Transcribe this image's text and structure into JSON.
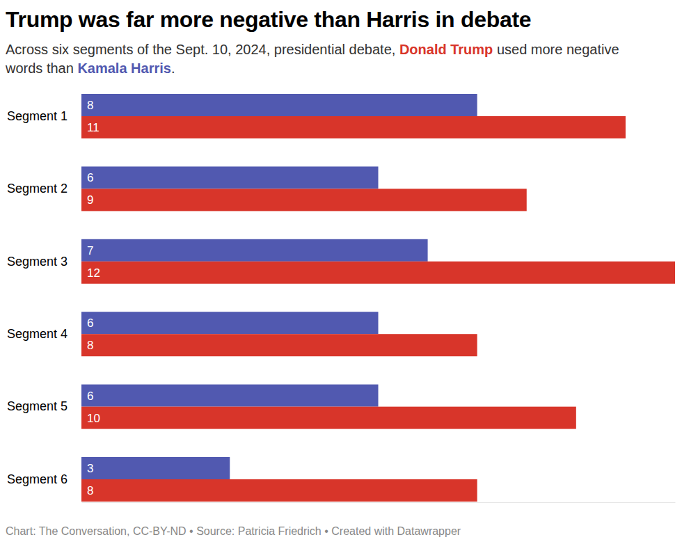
{
  "chart_data": {
    "type": "bar",
    "orientation": "horizontal",
    "title": "Trump was far more negative than Harris in debate",
    "subtitle": "Across six segments of the Sept. 10, 2024, presidential debate, Donald Trump used more negative words than Kamala Harris.",
    "caption": "Chart: The Conversation, CC-BY-ND • Source: Patricia Friedrich • Created with Datawrapper",
    "categories": [
      "Segment 1",
      "Segment 2",
      "Segment 3",
      "Segment 4",
      "Segment 5",
      "Segment 6"
    ],
    "series": [
      {
        "name": "Kamala Harris",
        "color": "#5159b0",
        "values": [
          8,
          6,
          7,
          6,
          6,
          3
        ]
      },
      {
        "name": "Donald Trump",
        "color": "#d8352a",
        "values": [
          11,
          9,
          12,
          8,
          10,
          8
        ]
      }
    ],
    "xlim": [
      0,
      12
    ],
    "tick_labels": "y",
    "data_labels": true,
    "grid": false
  }
}
